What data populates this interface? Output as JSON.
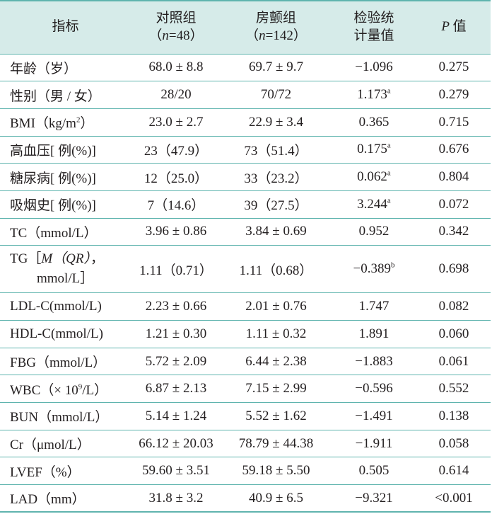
{
  "header": {
    "indicator": "指标",
    "control_title": "对照组",
    "control_n": "（n=48）",
    "af_title": "房颤组",
    "af_n": "（n=142）",
    "stat_line1": "检验统",
    "stat_line2": "计量值",
    "p_letter": "P",
    "p_suffix": " 值"
  },
  "rows": [
    {
      "name": "年龄（岁）",
      "control": "68.0 ± 8.8",
      "af": "69.7 ± 9.7",
      "stat": "−1.096",
      "p": "0.275"
    },
    {
      "name": "性别（男 / 女）",
      "control": "28/20",
      "af": "70/72",
      "stat": "1.173",
      "sup": "a",
      "p": "0.279"
    },
    {
      "name_pre": "BMI（kg/m",
      "name_sup": "2",
      "name_post": "）",
      "control": "23.0 ± 2.7",
      "af": "22.9 ± 3.4",
      "stat": "0.365",
      "p": "0.715"
    },
    {
      "name": "高血压[ 例(%)]",
      "control": "23（47.9）",
      "af": "73（51.4）",
      "stat": "0.175",
      "sup": "a",
      "p": "0.676"
    },
    {
      "name": "糖尿病[ 例(%)]",
      "control": "12（25.0）",
      "af": "33（23.2）",
      "stat": "0.062",
      "sup": "a",
      "p": "0.804"
    },
    {
      "name": "吸烟史[ 例(%)]",
      "control": "7（14.6）",
      "af": "39（27.5）",
      "stat": "3.244",
      "sup": "a",
      "p": "0.072"
    },
    {
      "name": "TC（mmol/L）",
      "control": "3.96 ± 0.86",
      "af": "3.84 ± 0.69",
      "stat": "0.952",
      "p": "0.342"
    },
    {
      "name_pre": "TG［",
      "name_it": "M（QR）",
      "name_post": "，",
      "name_line2": "mmol/L］",
      "control": "1.11（0.71）",
      "af": "1.11（0.68）",
      "stat": "−0.389",
      "sup": "b",
      "p": "0.698"
    },
    {
      "name": "LDL-C(mmol/L)",
      "control": "2.23 ± 0.66",
      "af": "2.01 ± 0.76",
      "stat": "1.747",
      "p": "0.082"
    },
    {
      "name": "HDL-C(mmol/L)",
      "control": "1.21 ± 0.30",
      "af": "1.11 ± 0.32",
      "stat": "1.891",
      "p": "0.060"
    },
    {
      "name": "FBG（mmol/L）",
      "control": "5.72 ± 2.09",
      "af": "6.44 ± 2.38",
      "stat": "−1.883",
      "p": "0.061"
    },
    {
      "name_pre": "WBC（× 10",
      "name_sup": "9",
      "name_post": "/L）",
      "control": "6.87 ± 2.13",
      "af": "7.15 ± 2.99",
      "stat": "−0.596",
      "p": "0.552"
    },
    {
      "name": "BUN（mmol/L）",
      "control": "5.14 ± 1.24",
      "af": "5.52 ± 1.62",
      "stat": "−1.491",
      "p": "0.138"
    },
    {
      "name": "Cr（μmol/L）",
      "control": "66.12 ± 20.03",
      "af": "78.79 ± 44.38",
      "stat": "−1.911",
      "p": "0.058"
    },
    {
      "name": "LVEF（%）",
      "control": "59.60 ± 3.51",
      "af": "59.18 ± 5.50",
      "stat": "0.505",
      "p": "0.614"
    },
    {
      "name": "LAD（mm）",
      "control": "31.8 ± 3.2",
      "af": "40.9 ± 6.5",
      "stat": "−9.321",
      "p": "<0.001"
    }
  ],
  "colors": {
    "header_bg": "#d6ebe9",
    "rule": "#5fb4ae",
    "text": "#231f20"
  }
}
